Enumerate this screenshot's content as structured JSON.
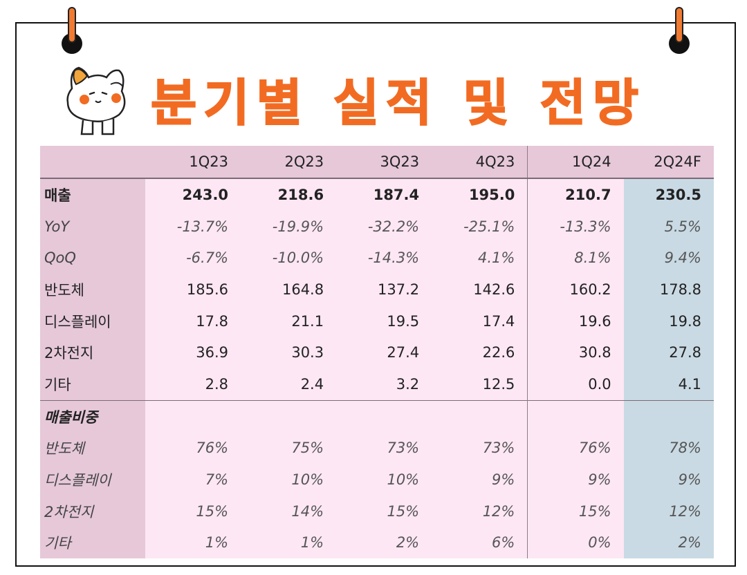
{
  "title": "분기별 실적 및 전망",
  "table": {
    "columns": [
      "1Q23",
      "2Q23",
      "3Q23",
      "4Q23",
      "1Q24",
      "2Q24F"
    ],
    "rows": [
      {
        "label": "매출",
        "values": [
          "243.0",
          "218.6",
          "187.4",
          "195.0",
          "210.7",
          "230.5"
        ],
        "style": "bold"
      },
      {
        "label": "YoY",
        "values": [
          "-13.7%",
          "-19.9%",
          "-32.2%",
          "-25.1%",
          "-13.3%",
          "5.5%"
        ],
        "style": "italic"
      },
      {
        "label": "QoQ",
        "values": [
          "-6.7%",
          "-10.0%",
          "-14.3%",
          "4.1%",
          "8.1%",
          "9.4%"
        ],
        "style": "italic"
      },
      {
        "label": "반도체",
        "values": [
          "185.6",
          "164.8",
          "137.2",
          "142.6",
          "160.2",
          "178.8"
        ],
        "style": "normal"
      },
      {
        "label": "디스플레이",
        "values": [
          "17.8",
          "21.1",
          "19.5",
          "17.4",
          "19.6",
          "19.8"
        ],
        "style": "normal"
      },
      {
        "label": "2차전지",
        "values": [
          "36.9",
          "30.3",
          "27.4",
          "22.6",
          "30.8",
          "27.8"
        ],
        "style": "normal"
      },
      {
        "label": "기타",
        "values": [
          "2.8",
          "2.4",
          "3.2",
          "12.5",
          "0.0",
          "4.1"
        ],
        "style": "normal"
      },
      {
        "label": "매출비중",
        "values": [
          "",
          "",
          "",
          "",
          "",
          ""
        ],
        "style": "section"
      },
      {
        "label": "반도체",
        "values": [
          "76%",
          "75%",
          "73%",
          "73%",
          "76%",
          "78%"
        ],
        "style": "italic"
      },
      {
        "label": "디스플레이",
        "values": [
          "7%",
          "10%",
          "10%",
          "9%",
          "9%",
          "9%"
        ],
        "style": "italic"
      },
      {
        "label": "2차전지",
        "values": [
          "15%",
          "14%",
          "15%",
          "12%",
          "15%",
          "12%"
        ],
        "style": "italic"
      },
      {
        "label": "기타",
        "values": [
          "1%",
          "1%",
          "2%",
          "6%",
          "0%",
          "2%"
        ],
        "style": "italic"
      }
    ]
  },
  "colors": {
    "title": "#f26b22",
    "header_bg": "#e6c8d9",
    "body_bg": "#fde7f4",
    "forecast_bg": "#c9dae4",
    "pin": "#f07a32"
  },
  "icons": [
    "pin-icon",
    "cat-mascot-icon"
  ]
}
